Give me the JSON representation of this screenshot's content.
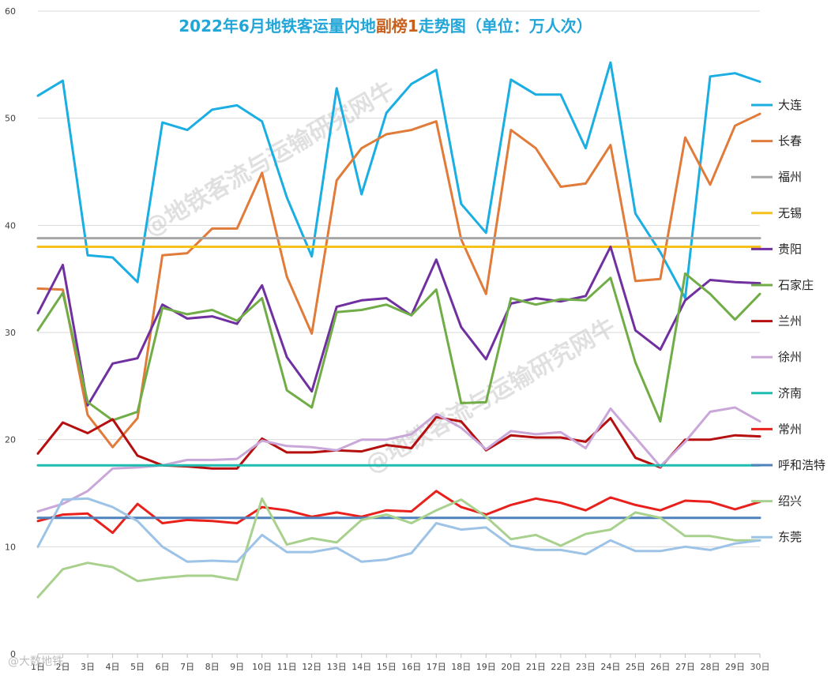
{
  "chart_data": {
    "type": "line",
    "title_parts": [
      {
        "text": "2022年6月地铁客运量内地",
        "color": "#22a6d8"
      },
      {
        "text": "副榜1",
        "color": "#c8611d"
      },
      {
        "text": "走势图（单位：万人次）",
        "color": "#22a6d8"
      }
    ],
    "categories": [
      "1日",
      "2日",
      "3日",
      "4日",
      "5日",
      "6日",
      "7日",
      "8日",
      "9日",
      "10日",
      "11日",
      "12日",
      "13日",
      "14日",
      "15日",
      "16日",
      "17日",
      "18日",
      "19日",
      "20日",
      "21日",
      "22日",
      "23日",
      "24日",
      "25日",
      "26日",
      "27日",
      "28日",
      "29日",
      "30日"
    ],
    "ylim": [
      0,
      60
    ],
    "yticks": [
      0,
      10,
      20,
      30,
      40,
      50,
      60
    ],
    "grid": true,
    "legend_position": "right",
    "series": [
      {
        "name": "大连",
        "color": "#1aaee2",
        "values": [
          52.1,
          53.5,
          37.2,
          37.0,
          34.7,
          49.6,
          48.9,
          50.8,
          51.2,
          49.7,
          42.6,
          37.1,
          52.8,
          42.9,
          50.5,
          53.2,
          54.5,
          42.0,
          39.3,
          53.6,
          52.2,
          52.2,
          47.2,
          55.2,
          41.1,
          37.5,
          33.2,
          53.9,
          54.2,
          53.4
        ]
      },
      {
        "name": "长春",
        "color": "#e07b39",
        "values": [
          34.1,
          34.0,
          22.3,
          19.3,
          22.0,
          37.2,
          37.4,
          39.7,
          39.7,
          44.9,
          35.2,
          29.9,
          44.2,
          47.2,
          48.5,
          48.9,
          49.7,
          38.7,
          33.6,
          48.9,
          47.2,
          43.6,
          43.9,
          47.5,
          34.8,
          35.0,
          48.2,
          43.8,
          49.3,
          50.4
        ]
      },
      {
        "name": "福州",
        "color": "#a6a6a6",
        "values": [
          38.8,
          38.8,
          38.8,
          38.8,
          38.8,
          38.8,
          38.8,
          38.8,
          38.8,
          38.8,
          38.8,
          38.8,
          38.8,
          38.8,
          38.8,
          38.8,
          38.8,
          38.8,
          38.8,
          38.8,
          38.8,
          38.8,
          38.8,
          38.8,
          38.8,
          38.8,
          38.8,
          38.8,
          38.8,
          38.8
        ]
      },
      {
        "name": "无锡",
        "color": "#f5c21b",
        "values": [
          38.0,
          38.0,
          38.0,
          38.0,
          38.0,
          38.0,
          38.0,
          38.0,
          38.0,
          38.0,
          38.0,
          38.0,
          38.0,
          38.0,
          38.0,
          38.0,
          38.0,
          38.0,
          38.0,
          38.0,
          38.0,
          38.0,
          38.0,
          38.0,
          38.0,
          38.0,
          38.0,
          38.0,
          38.0,
          38.0
        ]
      },
      {
        "name": "贵阳",
        "color": "#7030a0",
        "values": [
          31.8,
          36.3,
          23.2,
          27.1,
          27.6,
          32.6,
          31.3,
          31.5,
          30.8,
          34.4,
          27.7,
          24.5,
          32.4,
          33.0,
          33.2,
          31.6,
          36.8,
          30.5,
          27.5,
          32.7,
          33.2,
          32.9,
          33.4,
          38.0,
          30.2,
          28.4,
          33.0,
          34.9,
          34.7,
          34.6
        ]
      },
      {
        "name": "石家庄",
        "color": "#70ad47",
        "values": [
          30.2,
          33.7,
          23.5,
          21.8,
          22.6,
          32.3,
          31.7,
          32.1,
          31.1,
          33.2,
          24.6,
          23.0,
          31.9,
          32.1,
          32.6,
          31.6,
          34.0,
          23.4,
          23.5,
          33.2,
          32.6,
          33.1,
          33.0,
          35.1,
          27.2,
          21.7,
          35.5,
          33.6,
          31.2,
          33.6
        ]
      },
      {
        "name": "兰州",
        "color": "#b50f0f",
        "values": [
          18.7,
          21.6,
          20.6,
          21.9,
          18.5,
          17.6,
          17.5,
          17.3,
          17.3,
          20.1,
          18.8,
          18.8,
          19.0,
          18.9,
          19.5,
          19.2,
          22.1,
          21.7,
          19.0,
          20.4,
          20.2,
          20.2,
          19.8,
          22.0,
          18.3,
          17.4,
          20.0,
          20.0,
          20.4,
          20.3
        ]
      },
      {
        "name": "徐州",
        "color": "#c9a7d9",
        "values": [
          13.3,
          14.0,
          15.2,
          17.3,
          17.4,
          17.6,
          18.1,
          18.1,
          18.2,
          19.9,
          19.4,
          19.3,
          19.0,
          20.0,
          20.0,
          20.5,
          22.4,
          21.1,
          19.1,
          20.8,
          20.5,
          20.7,
          19.2,
          22.9,
          20.2,
          17.5,
          19.8,
          22.6,
          23.0,
          21.7
        ]
      },
      {
        "name": "济南",
        "color": "#1fbcb0",
        "values": [
          17.6,
          17.6,
          17.6,
          17.6,
          17.6,
          17.6,
          17.6,
          17.6,
          17.6,
          17.6,
          17.6,
          17.6,
          17.6,
          17.6,
          17.6,
          17.6,
          17.6,
          17.6,
          17.6,
          17.6,
          17.6,
          17.6,
          17.6,
          17.6,
          17.6,
          17.6,
          17.6,
          17.6,
          17.6,
          17.6
        ]
      },
      {
        "name": "常州",
        "color": "#e8211d",
        "values": [
          12.4,
          13.0,
          13.1,
          11.3,
          14.0,
          12.2,
          12.5,
          12.4,
          12.2,
          13.7,
          13.4,
          12.8,
          13.2,
          12.8,
          13.4,
          13.3,
          15.2,
          13.7,
          13.0,
          13.9,
          14.5,
          14.1,
          13.4,
          14.6,
          13.9,
          13.4,
          14.3,
          14.2,
          13.5,
          14.2
        ]
      },
      {
        "name": "呼和浩特",
        "color": "#4f81bd",
        "values": [
          12.7,
          12.7,
          12.7,
          12.7,
          12.7,
          12.7,
          12.7,
          12.7,
          12.7,
          12.7,
          12.7,
          12.7,
          12.7,
          12.7,
          12.7,
          12.7,
          12.7,
          12.7,
          12.7,
          12.7,
          12.7,
          12.7,
          12.7,
          12.7,
          12.7,
          12.7,
          12.7,
          12.7,
          12.7,
          12.7
        ]
      },
      {
        "name": "绍兴",
        "color": "#a9d18e",
        "values": [
          5.3,
          7.9,
          8.5,
          8.1,
          6.8,
          7.1,
          7.3,
          7.3,
          6.9,
          14.5,
          10.2,
          10.8,
          10.4,
          12.5,
          13.0,
          12.2,
          13.4,
          14.4,
          12.8,
          10.7,
          11.1,
          10.1,
          11.2,
          11.6,
          13.2,
          12.7,
          11.0,
          11.0,
          10.6,
          10.6
        ]
      },
      {
        "name": "东莞",
        "color": "#9dc3e6",
        "values": [
          10.0,
          14.4,
          14.5,
          13.7,
          12.4,
          10.0,
          8.6,
          8.7,
          8.6,
          11.1,
          9.5,
          9.5,
          9.9,
          8.6,
          8.8,
          9.4,
          12.2,
          11.6,
          11.8,
          10.1,
          9.7,
          9.7,
          9.3,
          10.6,
          9.6,
          9.6,
          10.0,
          9.7,
          10.3,
          10.6
        ]
      }
    ]
  },
  "watermarks": {
    "main": "@地铁客流与运输研究网牛",
    "corner": "@大数地铁"
  }
}
